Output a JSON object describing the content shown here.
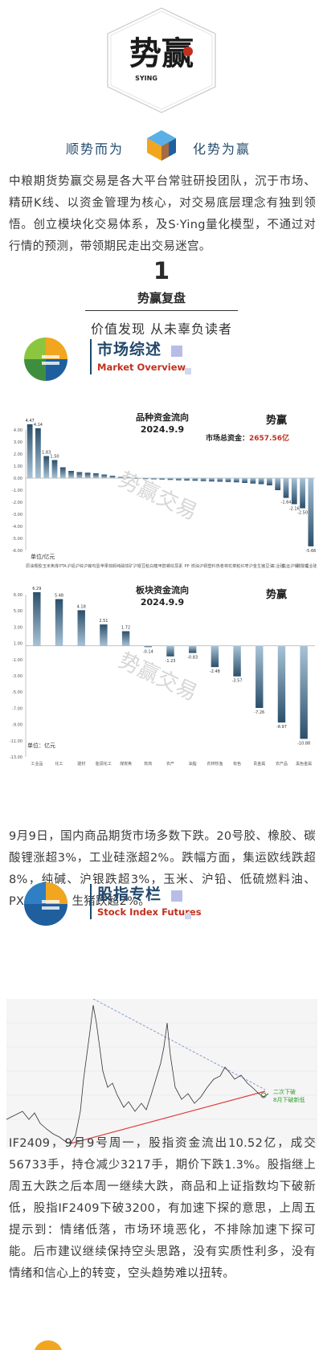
{
  "header": {
    "logo_text": "势赢",
    "logo_sub": "SYING",
    "tagline_left": "顺势而为",
    "tagline_right": "化势为赢"
  },
  "intro": "中粮期货势赢交易是各大平台常驻研投团队，沉于市场、精研K线、以资金管理为核心，对交易底层理念有独到领悟。创立模块化交易体系，及S·Ying量化模型，不通过对行情的预测，带领期民走出交易迷宫。",
  "review": {
    "number": "1",
    "title": "势赢复盘",
    "subtitle": "价值发现 从未辜负读者"
  },
  "section_market": {
    "cn": "市场综述",
    "en": "Market Overview"
  },
  "section_index": {
    "cn": "股指专栏",
    "en": "Stock Index Futures"
  },
  "chart_data": [
    {
      "type": "bar",
      "title": "品种资金流向",
      "subtitle": "2024.9.9",
      "total_label": "市场总资金：",
      "total_value": "2657.56亿",
      "unit_label": "单位/亿元",
      "ylim": [
        -6,
        4
      ],
      "yticks": [
        "4.00",
        "3.00",
        "2.00",
        "1.00",
        "0.00",
        "-1.00",
        "-2.00",
        "-3.00",
        "-4.00",
        "-5.00",
        "-6.00"
      ],
      "categories": [
        "原油",
        "橡胶",
        "玉米",
        "焦煤",
        "PTA",
        "沪铝",
        "沪锌",
        "沪镍",
        "鸡蛋",
        "苹果",
        "棕榈",
        "纯碱",
        "铁矿",
        "沪银",
        "豆粕",
        "白糖",
        "甲醇",
        "螺纹",
        "尿素",
        "PP",
        "燃油",
        "沪铜",
        "塑料",
        "热卷",
        "棉花",
        "菜粕",
        "红枣",
        "沪金",
        "生猪",
        "豆油",
        "工业硅",
        "集运",
        "沪锡",
        "碳酸锂",
        "工业硅"
      ],
      "values": [
        4.47,
        4.14,
        1.83,
        1.5,
        0.9,
        0.6,
        0.5,
        0.45,
        0.4,
        0.3,
        0.2,
        0.1,
        0.05,
        -0.05,
        -0.08,
        -0.1,
        -0.12,
        -0.15,
        -0.18,
        -0.2,
        -0.22,
        -0.25,
        -0.28,
        -0.3,
        -0.32,
        -0.35,
        -0.4,
        -0.45,
        -0.5,
        -0.6,
        -1.0,
        -1.64,
        -2.16,
        -2.5,
        -5.66
      ],
      "data_labels": [
        "4.47",
        "4.14",
        "1.83",
        "1.50",
        "",
        "",
        "",
        "",
        "",
        "",
        "",
        "",
        "",
        "",
        "",
        "",
        "",
        "",
        "",
        "",
        "",
        "",
        "",
        "",
        "",
        "",
        "",
        "",
        "",
        "",
        "",
        "-1.64",
        "-2.16",
        "-2.50",
        "-5.66"
      ]
    },
    {
      "type": "bar",
      "title": "板块资金流向",
      "subtitle": "2024.9.9",
      "unit_label": "单位：亿元",
      "ylim": [
        -13,
        6
      ],
      "yticks": [
        "6.00",
        "5.00",
        "3.00",
        "1.00",
        "-1.00",
        "-3.00",
        "-5.00",
        "-7.00",
        "-9.00",
        "-11.00",
        "-13.00"
      ],
      "categories": [
        "工业品",
        "化工",
        "建材",
        "能源化工",
        "煤炭焦",
        "软商",
        "农产",
        "油脂",
        "农林牧渔",
        "有色",
        "贵金属",
        "农产品",
        "黑色金属"
      ],
      "values": [
        6.29,
        5.48,
        4.18,
        2.51,
        1.72,
        -0.14,
        -1.23,
        -0.83,
        -2.48,
        -3.57,
        -7.26,
        -8.97,
        -10.88
      ],
      "data_labels": [
        "6.29",
        "5.48",
        "4.18",
        "2.51",
        "1.72",
        "-0.14",
        "-1.23",
        "-0.83",
        "-2.48",
        "-3.57",
        "-7.26",
        "-8.97",
        "-10.88"
      ]
    }
  ],
  "watermark": "势赢交易",
  "market_text": "9月9日，国内商品期货市场多数下跌。20号胶、橡胶、碳酸锂涨超3%，工业硅涨超2%。跌幅方面，集运欧线跌超8%，纯碱、沪银跌超3%，玉米、沪铅、低硫燃料油、PX、瓶片、生猪跌超2%。",
  "kline": {
    "annotation_line1": "二次下破",
    "annotation_line2": "8月下破新低"
  },
  "index_text": "IF2409，9月9号周一，股指资金流出10.52亿，成交56733手，持仓减少3217手，期价下跌1.3%。股指继上周五大跌之后本周一继续大跌，商品和上证指数均下破新低，股指IF2409下破3200，有加速下探的意思，上周五提示到：情绪低落，市场环境恶化，不排除加速下探可能。后市建议继续保持空头思路，没有实质性利多，没有情绪和信心上的转变，空头趋势难以扭转。",
  "colors": {
    "navy": "#23486b",
    "red": "#c2301f",
    "bar_dark": "#2b4f6b",
    "bar_light": "#a9c3d6"
  }
}
